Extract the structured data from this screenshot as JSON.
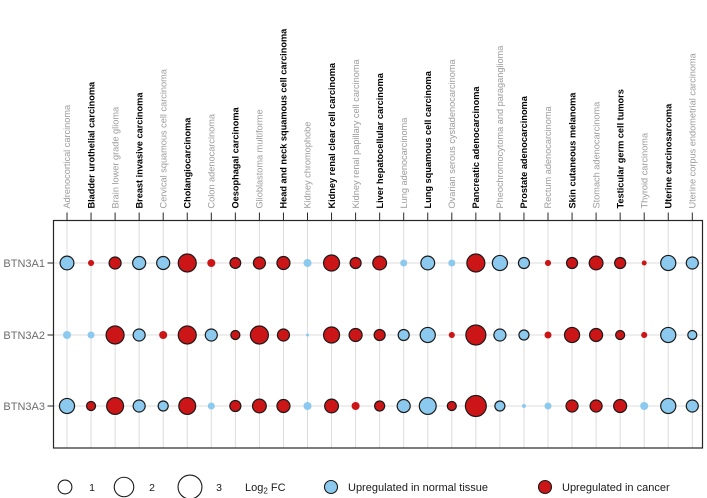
{
  "chart_data": {
    "type": "bubble",
    "rows": [
      "BTN3A1",
      "BTN3A2",
      "BTN3A3"
    ],
    "columns": [
      {
        "label": "Adrenocortical carcinoma",
        "style": "muted"
      },
      {
        "label": "Bladder urothelial carcinoma",
        "style": "bold"
      },
      {
        "label": "Brain lower grade glioma",
        "style": "muted"
      },
      {
        "label": "Breast invasive carcinoma",
        "style": "bold"
      },
      {
        "label": "Cervical squamous cell carcinoma",
        "style": "muted"
      },
      {
        "label": "Cholangiocarcinoma",
        "style": "bold"
      },
      {
        "label": "Colon adenocarcinoma",
        "style": "muted"
      },
      {
        "label": "Oesophagal carcinoma",
        "style": "bold"
      },
      {
        "label": "Glioblastoma multiforme",
        "style": "muted"
      },
      {
        "label": "Head and neck squamous cell carcinoma",
        "style": "bold"
      },
      {
        "label": "Kidney chromophobe",
        "style": "muted"
      },
      {
        "label": "Kidney renal clear cell carcinoma",
        "style": "bold"
      },
      {
        "label": "Kidney renal papillary cell carcinoma",
        "style": "muted"
      },
      {
        "label": "Liver hepatocellular carcinoma",
        "style": "bold"
      },
      {
        "label": "Lung adenocarcinoma",
        "style": "muted"
      },
      {
        "label": "Lung squamous cell carcinoma",
        "style": "bold"
      },
      {
        "label": "Ovarian serous cystadenocarcinoma",
        "style": "muted"
      },
      {
        "label": "Pancreatic adenocarcinoma",
        "style": "bold"
      },
      {
        "label": "Pheochromocytoma and paraganglioma",
        "style": "muted"
      },
      {
        "label": "Prostate adenocarcinoma",
        "style": "bold"
      },
      {
        "label": "Rectum adenocarcinoma",
        "style": "muted"
      },
      {
        "label": "Skin cutaneous melanoma",
        "style": "bold"
      },
      {
        "label": "Stomach adenocarcinoma",
        "style": "muted"
      },
      {
        "label": "Testicular germ cell tumors",
        "style": "bold"
      },
      {
        "label": "Thyroid carcinoma",
        "style": "muted"
      },
      {
        "label": "Uterine carcinosarcoma",
        "style": "bold"
      },
      {
        "label": "Uterine corpus endometrial carcinoma",
        "style": "muted"
      }
    ],
    "series": [
      {
        "name": "BTN3A1",
        "direction": [
          "n",
          "c",
          "c",
          "n",
          "n",
          "c",
          "c",
          "c",
          "c",
          "c",
          "n",
          "c",
          "c",
          "c",
          "n",
          "n",
          "n",
          "c",
          "n",
          "n",
          "c",
          "c",
          "c",
          "c",
          "c",
          "n",
          "n"
        ],
        "log2_fc": [
          1.0,
          0.2,
          0.76,
          0.89,
          0.89,
          1.7,
          0.34,
          0.6,
          0.76,
          0.89,
          0.34,
          1.35,
          0.64,
          1.0,
          0.26,
          1.0,
          0.26,
          1.7,
          1.2,
          0.64,
          0.2,
          0.64,
          1.0,
          0.64,
          0.13,
          1.2,
          0.76
        ]
      },
      {
        "name": "BTN3A2",
        "direction": [
          "n",
          "n",
          "c",
          "n",
          "c",
          "c",
          "n",
          "c",
          "c",
          "c",
          "n",
          "c",
          "c",
          "c",
          "n",
          "n",
          "c",
          "c",
          "n",
          "n",
          "c",
          "c",
          "c",
          "c",
          "c",
          "n",
          "n"
        ],
        "log2_fc": [
          0.34,
          0.26,
          1.7,
          0.76,
          0.34,
          1.7,
          0.76,
          0.43,
          1.7,
          0.76,
          0.05,
          1.35,
          0.89,
          0.64,
          0.64,
          1.2,
          0.2,
          2.1,
          0.76,
          0.53,
          0.26,
          1.2,
          0.89,
          0.43,
          0.2,
          1.2,
          0.43
        ]
      },
      {
        "name": "BTN3A3",
        "direction": [
          "n",
          "c",
          "c",
          "n",
          "n",
          "c",
          "n",
          "c",
          "c",
          "c",
          "n",
          "c",
          "c",
          "c",
          "n",
          "n",
          "c",
          "c",
          "n",
          "n",
          "n",
          "c",
          "c",
          "c",
          "n",
          "n",
          "n"
        ],
        "log2_fc": [
          1.2,
          0.43,
          1.5,
          0.76,
          0.53,
          1.5,
          0.26,
          0.64,
          1.0,
          0.89,
          0.34,
          1.0,
          0.34,
          0.53,
          0.89,
          1.5,
          0.43,
          2.3,
          0.53,
          0.08,
          0.26,
          0.76,
          0.76,
          0.89,
          0.34,
          1.2,
          0.76
        ]
      }
    ],
    "size_legend": {
      "title_pre": "Log",
      "title_sub": "2",
      "title_post": " FC",
      "sizes": [
        "1",
        "2",
        "3"
      ]
    },
    "color_legend": [
      {
        "key": "normal",
        "label": "Upregulated in normal tissue",
        "color": "#8cc9ee"
      },
      {
        "key": "cancer",
        "label": "Upregulated in cancer",
        "color": "#cc1517"
      }
    ],
    "colors": {
      "normal": "#8cc9ee",
      "cancer": "#cc1517",
      "outline": "#1a1a1a",
      "grid": "#dcdcdc",
      "frame": "#262626",
      "muted_label": "#9b9b9b",
      "bold_label": "#000000",
      "row_label": "#6e6e6e",
      "legend_text": "#1a1a1a"
    },
    "layout": {
      "legend_position": "bottom",
      "grid": true,
      "column_labels_rotated": true
    }
  }
}
